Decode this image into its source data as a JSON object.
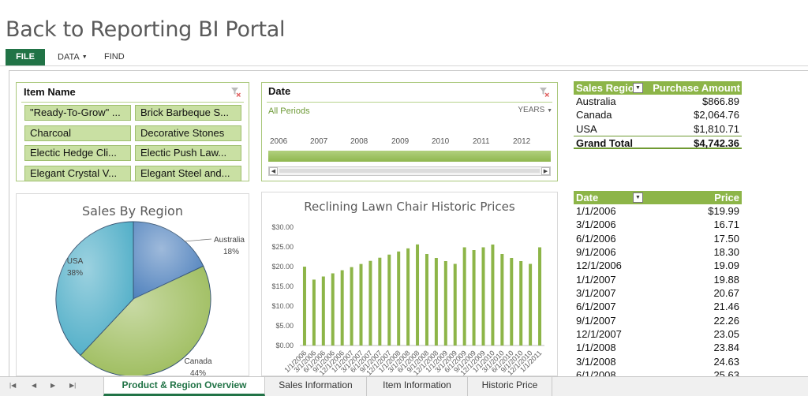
{
  "app": {
    "title": "Back to Reporting BI Portal"
  },
  "ribbon": {
    "file": "FILE",
    "data": "DATA",
    "find": "FIND"
  },
  "slicer": {
    "title": "Item Name",
    "items": [
      "\"Ready-To-Grow\" ...",
      "Brick Barbeque S...",
      "Charcoal",
      "Decorative Stones",
      "Electic Hedge Cli...",
      "Electic Push Law...",
      "Elegant Crystal V...",
      "Elegant Steel and..."
    ]
  },
  "timeline": {
    "title": "Date",
    "periods": "All Periods",
    "level": "YEARS",
    "years": [
      "2006",
      "2007",
      "2008",
      "2009",
      "2010",
      "2011",
      "2012"
    ]
  },
  "pivot": {
    "col1": "Sales Region",
    "col2": "Purchase Amount",
    "rows": [
      {
        "region": "Australia",
        "amount": "$866.89"
      },
      {
        "region": "Canada",
        "amount": "$2,064.76"
      },
      {
        "region": "USA",
        "amount": "$1,810.71"
      }
    ],
    "total_label": "Grand Total",
    "total_value": "$4,742.36"
  },
  "price_table": {
    "col1": "Date",
    "col2": "Price",
    "rows": [
      {
        "date": "1/1/2006",
        "price": "$19.99"
      },
      {
        "date": "3/1/2006",
        "price": "16.71"
      },
      {
        "date": "6/1/2006",
        "price": "17.50"
      },
      {
        "date": "9/1/2006",
        "price": "18.30"
      },
      {
        "date": "12/1/2006",
        "price": "19.09"
      },
      {
        "date": "1/1/2007",
        "price": "19.88"
      },
      {
        "date": "3/1/2007",
        "price": "20.67"
      },
      {
        "date": "6/1/2007",
        "price": "21.46"
      },
      {
        "date": "9/1/2007",
        "price": "22.26"
      },
      {
        "date": "12/1/2007",
        "price": "23.05"
      },
      {
        "date": "1/1/2008",
        "price": "23.84"
      },
      {
        "date": "3/1/2008",
        "price": "24.63"
      },
      {
        "date": "6/1/2008",
        "price": "25.63"
      }
    ]
  },
  "chart_data": [
    {
      "type": "pie",
      "title": "Sales By Region",
      "slices": [
        {
          "label": "Australia",
          "value": 18,
          "display": "18%",
          "color": "#4f81bd"
        },
        {
          "label": "Canada",
          "value": 44,
          "display": "44%",
          "color": "#9bbb59"
        },
        {
          "label": "USA",
          "value": 38,
          "display": "38%",
          "color": "#4bacc6"
        }
      ]
    },
    {
      "type": "bar",
      "title": "Reclining Lawn Chair Historic Prices",
      "ylim": [
        0,
        30
      ],
      "yticks": [
        "$0.00",
        "$5.00",
        "$10.00",
        "$15.00",
        "$20.00",
        "$25.00",
        "$30.00"
      ],
      "color": "#8db548",
      "xtick_labels": [
        "1/1/2006",
        "3/1/2006",
        "6/1/2006",
        "9/1/2006",
        "12/1/2006",
        "1/1/2007",
        "3/1/2007",
        "6/1/2007",
        "9/1/2007",
        "12/1/2007",
        "1/1/2008",
        "3/1/2008",
        "6/1/2008",
        "9/1/2008",
        "12/1/2008",
        "1/1/2009",
        "3/1/2009",
        "6/1/2009",
        "9/1/2009",
        "12/1/2009",
        "1/1/2010",
        "3/1/2010",
        "6/1/2010",
        "9/1/2010",
        "12/1/2010",
        "1/1/2011"
      ],
      "values": [
        19.99,
        16.71,
        17.5,
        18.3,
        19.09,
        19.88,
        20.67,
        21.46,
        22.26,
        23.05,
        23.84,
        24.63,
        25.63,
        23.2,
        22.2,
        21.4,
        20.7,
        24.9,
        24.2,
        24.9,
        25.6,
        23.2,
        22.2,
        21.4,
        20.7,
        24.9
      ]
    }
  ],
  "sheet_tabs": [
    "Product & Region Overview",
    "Sales Information",
    "Item Information",
    "Historic Price"
  ]
}
